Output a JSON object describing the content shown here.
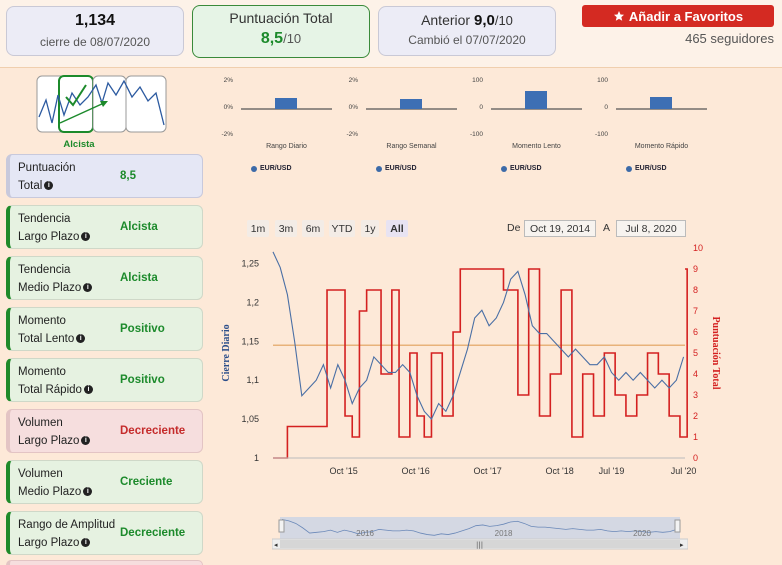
{
  "header": {
    "close_value": "1,134",
    "close_date": "cierre de 08/07/2020",
    "score_title": "Puntuación Total",
    "score_value": "8,5",
    "score_den": "/10",
    "prev_label": "Anterior",
    "prev_value": "9,0",
    "prev_den": "/10",
    "prev_date": "Cambió el 07/07/2020",
    "fav_button": "Añadir a Favoritos",
    "followers": "465 seguidores"
  },
  "trend_badge": "Alcista",
  "signals": [
    {
      "label1": "Puntuación",
      "label2": "Total",
      "value": "8,5",
      "kind": "blue"
    },
    {
      "label1": "Tendencia",
      "label2": "Largo Plazo",
      "value": "Alcista",
      "kind": "green"
    },
    {
      "label1": "Tendencia",
      "label2": "Medio Plazo",
      "value": "Alcista",
      "kind": "green"
    },
    {
      "label1": "Momento",
      "label2": "Total Lento",
      "value": "Positivo",
      "kind": "green"
    },
    {
      "label1": "Momento",
      "label2": "Total Rápido",
      "value": "Positivo",
      "kind": "green"
    },
    {
      "label1": "Volumen",
      "label2": "Largo Plazo",
      "value": "Decreciente",
      "kind": "red"
    },
    {
      "label1": "Volumen",
      "label2": "Medio Plazo",
      "value": "Creciente",
      "kind": "green"
    },
    {
      "label1": "Rango de Amplitud",
      "label2": "Largo Plazo",
      "value": "Decreciente",
      "kind": "green"
    }
  ],
  "mini_charts": [
    {
      "title": "Rango Diario",
      "ticks": [
        "2%",
        "0%",
        "-2%"
      ],
      "value": 0.55,
      "legend": "EUR/USD"
    },
    {
      "title": "Rango Semanal",
      "ticks": [
        "2%",
        "0%",
        "-2%"
      ],
      "value": 0.5,
      "legend": "EUR/USD"
    },
    {
      "title": "Momento Lento",
      "ticks": [
        "100",
        "0",
        "-100"
      ],
      "value": 0.9,
      "legend": "EUR/USD"
    },
    {
      "title": "Momento Rápido",
      "ticks": [
        "100",
        "0",
        "-100"
      ],
      "value": 0.6,
      "legend": "EUR/USD"
    }
  ],
  "range_buttons": [
    "1m",
    "3m",
    "6m",
    "YTD",
    "1y",
    "All"
  ],
  "range_selected": "All",
  "date_from_label": "De",
  "date_from": "Oct 19, 2014",
  "date_to_label": "A",
  "date_to": "Jul 8, 2020",
  "navigator_years": [
    "2016",
    "2018",
    "2020"
  ],
  "colors": {
    "price": "#4a6fa5",
    "score": "#d42020",
    "accent": "#d42a22",
    "positive": "#1c8a2b"
  },
  "chart_data": {
    "type": "line",
    "ylabel_left": "Cierre Diario",
    "ylabel_right": "Puntuación Total",
    "y_left_ticks": [
      "1,25",
      "1,2",
      "1,15",
      "1,1",
      "1,05",
      "1"
    ],
    "y_right_ticks": [
      "10",
      "9",
      "8",
      "7",
      "6",
      "5",
      "4",
      "3",
      "2",
      "1",
      "0"
    ],
    "x_ticks": [
      "Oct '15",
      "Oct '16",
      "Oct '17",
      "Oct '18",
      "Jul '19",
      "Jul '20"
    ],
    "ylim_left": [
      1.0,
      1.27
    ],
    "ylim_right": [
      0,
      10
    ],
    "reference_level": 1.145,
    "series": [
      {
        "name": "Cierre Diario",
        "axis": "left",
        "x": [
          2014.8,
          2014.9,
          2015.0,
          2015.1,
          2015.2,
          2015.3,
          2015.4,
          2015.5,
          2015.6,
          2015.7,
          2015.8,
          2015.9,
          2016.0,
          2016.1,
          2016.2,
          2016.3,
          2016.4,
          2016.5,
          2016.6,
          2016.7,
          2016.8,
          2016.9,
          2017.0,
          2017.1,
          2017.2,
          2017.3,
          2017.4,
          2017.5,
          2017.6,
          2017.7,
          2017.8,
          2017.9,
          2018.0,
          2018.1,
          2018.2,
          2018.3,
          2018.4,
          2018.5,
          2018.6,
          2018.7,
          2018.8,
          2018.9,
          2019.0,
          2019.1,
          2019.2,
          2019.3,
          2019.4,
          2019.5,
          2019.6,
          2019.7,
          2019.8,
          2019.9,
          2020.0,
          2020.1,
          2020.2,
          2020.3,
          2020.4,
          2020.5
        ],
        "values": [
          1.265,
          1.245,
          1.21,
          1.15,
          1.08,
          1.09,
          1.1,
          1.12,
          1.09,
          1.12,
          1.1,
          1.07,
          1.09,
          1.1,
          1.13,
          1.12,
          1.11,
          1.11,
          1.12,
          1.11,
          1.08,
          1.06,
          1.05,
          1.07,
          1.06,
          1.08,
          1.11,
          1.14,
          1.18,
          1.19,
          1.17,
          1.18,
          1.2,
          1.23,
          1.24,
          1.21,
          1.17,
          1.16,
          1.16,
          1.15,
          1.14,
          1.13,
          1.14,
          1.13,
          1.12,
          1.12,
          1.13,
          1.11,
          1.1,
          1.11,
          1.1,
          1.11,
          1.1,
          1.09,
          1.1,
          1.09,
          1.1,
          1.13
        ]
      },
      {
        "name": "Puntuación Total",
        "axis": "right",
        "x": [
          2014.8,
          2015.0,
          2015.1,
          2015.3,
          2015.45,
          2015.55,
          2015.7,
          2015.8,
          2015.9,
          2016.0,
          2016.1,
          2016.3,
          2016.45,
          2016.55,
          2016.7,
          2016.8,
          2016.9,
          2017.0,
          2017.15,
          2017.3,
          2017.4,
          2017.55,
          2017.7,
          2017.85,
          2018.0,
          2018.2,
          2018.35,
          2018.5,
          2018.65,
          2018.8,
          2018.95,
          2019.1,
          2019.25,
          2019.4,
          2019.55,
          2019.7,
          2019.85,
          2020.0,
          2020.15,
          2020.3,
          2020.45,
          2020.55
        ],
        "values": [
          0,
          1.5,
          1.5,
          1.5,
          1.5,
          8,
          8,
          2,
          1,
          7,
          8,
          4,
          8,
          1,
          5,
          2,
          1,
          5,
          2,
          6,
          9,
          9,
          9,
          9,
          8,
          3,
          9,
          2,
          4,
          8,
          1,
          4,
          2,
          5,
          3,
          2,
          3,
          5,
          4,
          2,
          1,
          9
        ]
      }
    ]
  }
}
